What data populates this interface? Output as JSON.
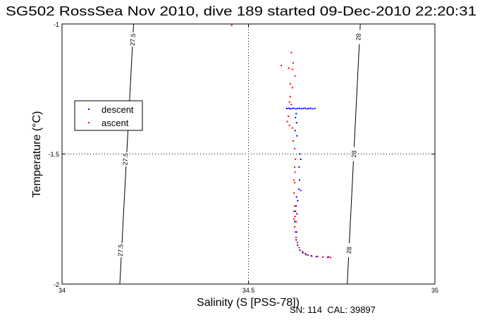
{
  "chart_data": {
    "type": "scatter",
    "title": "SG502 RossSea Nov 2010, dive 189 started 09-Dec-2010 22:20:31",
    "xlabel": "Salinity (S [PSS-78])",
    "ylabel": "Temperature (°C)",
    "xlim": [
      34,
      35
    ],
    "ylim": [
      -2,
      -1
    ],
    "x_ticks": [
      "34",
      "34.5",
      "35"
    ],
    "y_ticks": [
      "-1",
      "-1.5",
      "-2"
    ],
    "grid": "dotted at 34.5 and -1.5",
    "footer": "SN: 114  CAL: 39897",
    "legend": {
      "placement": "left",
      "entries": [
        {
          "label": "descent",
          "color": "#0000ff"
        },
        {
          "label": "ascent",
          "color": "#ff0000"
        }
      ]
    },
    "isopycnals": [
      {
        "label": "27.5",
        "points": [
          [
            34.192,
            -1.0
          ],
          [
            34.155,
            -2.0
          ]
        ],
        "label_positions": [
          [
            34.19,
            -1.06
          ],
          [
            34.17,
            -1.52
          ],
          [
            34.157,
            -1.87
          ]
        ]
      },
      {
        "label": "28",
        "points": [
          [
            34.8,
            -1.0
          ],
          [
            34.765,
            -2.0
          ]
        ],
        "label_positions": [
          [
            34.795,
            -1.05
          ],
          [
            34.783,
            -1.5
          ],
          [
            34.77,
            -1.87
          ]
        ]
      }
    ],
    "series": [
      {
        "name": "descent",
        "color": "#0000ff",
        "points": [
          [
            34.603,
            -1.325
          ],
          [
            34.608,
            -1.324
          ],
          [
            34.612,
            -1.326
          ],
          [
            34.617,
            -1.325
          ],
          [
            34.622,
            -1.324
          ],
          [
            34.627,
            -1.326
          ],
          [
            34.632,
            -1.325
          ],
          [
            34.637,
            -1.324
          ],
          [
            34.642,
            -1.326
          ],
          [
            34.647,
            -1.325
          ],
          [
            34.652,
            -1.324
          ],
          [
            34.657,
            -1.326
          ],
          [
            34.662,
            -1.325
          ],
          [
            34.667,
            -1.324
          ],
          [
            34.672,
            -1.326
          ],
          [
            34.678,
            -1.325
          ],
          [
            34.628,
            -1.345
          ],
          [
            34.626,
            -1.36
          ],
          [
            34.629,
            -1.38
          ],
          [
            34.625,
            -1.41
          ],
          [
            34.63,
            -1.43
          ],
          [
            34.638,
            -1.5
          ],
          [
            34.64,
            -1.52
          ],
          [
            34.636,
            -1.55
          ],
          [
            34.637,
            -1.6
          ],
          [
            34.635,
            -1.635
          ],
          [
            34.64,
            -1.64
          ],
          [
            34.629,
            -1.665
          ],
          [
            34.632,
            -1.68
          ],
          [
            34.628,
            -1.7
          ],
          [
            34.626,
            -1.72
          ],
          [
            34.63,
            -1.73
          ],
          [
            34.624,
            -1.76
          ],
          [
            34.629,
            -1.8
          ],
          [
            34.628,
            -1.83
          ],
          [
            34.632,
            -1.85
          ],
          [
            34.638,
            -1.87
          ],
          [
            34.646,
            -1.88
          ],
          [
            34.655,
            -1.887
          ],
          [
            34.668,
            -1.891
          ],
          [
            34.682,
            -1.894
          ],
          [
            34.7,
            -1.896
          ],
          [
            34.715,
            -1.896
          ]
        ]
      },
      {
        "name": "ascent",
        "color": "#ff0000",
        "points": [
          [
            34.615,
            -1.11
          ],
          [
            34.62,
            -1.15
          ],
          [
            34.608,
            -1.17
          ],
          [
            34.618,
            -1.175
          ],
          [
            34.625,
            -1.2
          ],
          [
            34.612,
            -1.23
          ],
          [
            34.618,
            -1.245
          ],
          [
            34.612,
            -1.28
          ],
          [
            34.61,
            -1.3
          ],
          [
            34.615,
            -1.31
          ],
          [
            34.607,
            -1.355
          ],
          [
            34.604,
            -1.375
          ],
          [
            34.61,
            -1.39
          ],
          [
            34.618,
            -1.4
          ],
          [
            34.62,
            -1.45
          ],
          [
            34.624,
            -1.48
          ],
          [
            34.626,
            -1.52
          ],
          [
            34.624,
            -1.55
          ],
          [
            34.625,
            -1.57
          ],
          [
            34.622,
            -1.6
          ],
          [
            34.624,
            -1.61
          ],
          [
            34.622,
            -1.65
          ],
          [
            34.624,
            -1.7
          ],
          [
            34.622,
            -1.72
          ],
          [
            34.625,
            -1.74
          ],
          [
            34.622,
            -1.75
          ],
          [
            34.628,
            -1.76
          ],
          [
            34.624,
            -1.78
          ],
          [
            34.626,
            -1.8
          ],
          [
            34.628,
            -1.82
          ],
          [
            34.631,
            -1.84
          ],
          [
            34.636,
            -1.86
          ],
          [
            34.645,
            -1.875
          ],
          [
            34.652,
            -1.883
          ],
          [
            34.66,
            -1.889
          ],
          [
            34.67,
            -1.893
          ],
          [
            34.685,
            -1.894
          ],
          [
            34.7,
            -1.896
          ],
          [
            34.712,
            -1.897
          ],
          [
            34.72,
            -1.898
          ],
          [
            34.588,
            -1.16
          ],
          [
            34.455,
            -1.005
          ]
        ]
      }
    ]
  }
}
